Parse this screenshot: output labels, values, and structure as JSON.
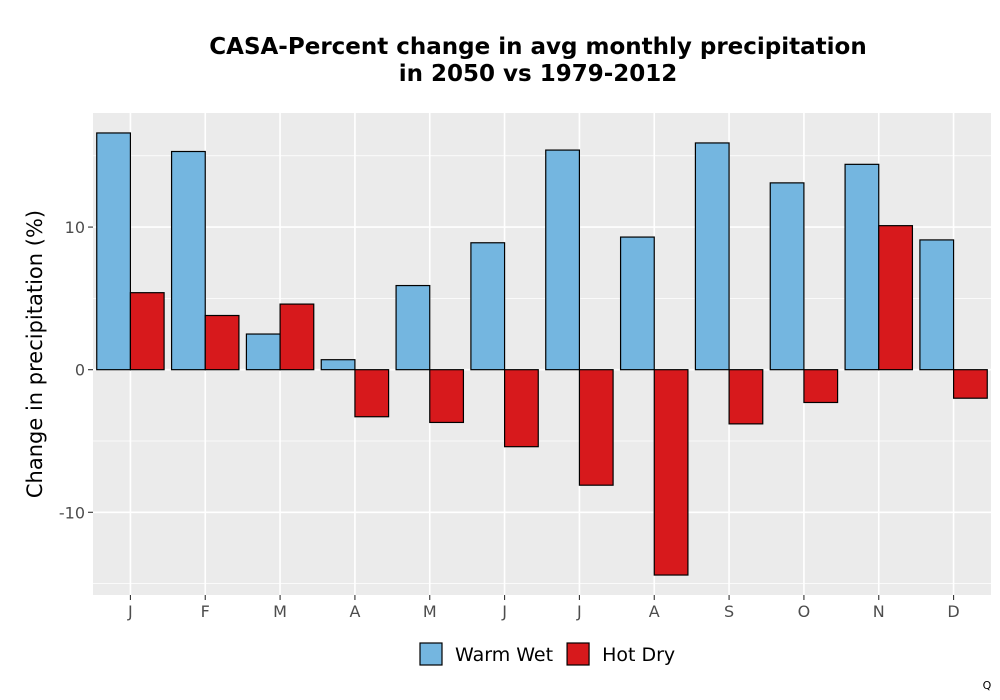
{
  "chart_data": {
    "type": "bar",
    "title": [
      "CASA-Percent change in avg monthly precipitation",
      "in 2050 vs 1979-2012"
    ],
    "xlabel": "",
    "ylabel": "Change in precipitation (%)",
    "ylim": [
      -15.8,
      18
    ],
    "yticks": [
      -10,
      0,
      10
    ],
    "ytick_labels": [
      "-10",
      "0",
      "10"
    ],
    "categories": [
      "J",
      "F",
      "M",
      "A",
      "M",
      "J",
      "J",
      "A",
      "S",
      "O",
      "N",
      "D"
    ],
    "series": [
      {
        "name": "Warm Wet",
        "color": "#74b6e0",
        "values": [
          16.6,
          15.3,
          2.5,
          0.7,
          5.9,
          8.9,
          15.4,
          9.3,
          15.9,
          13.1,
          14.4,
          9.1
        ]
      },
      {
        "name": "Hot Dry",
        "color": "#d7191c",
        "values": [
          5.4,
          3.8,
          4.6,
          -3.3,
          -3.7,
          -5.4,
          -8.1,
          -14.4,
          -3.8,
          -2.3,
          10.1,
          -2.0
        ]
      }
    ],
    "grid": true,
    "legend_position": "bottom",
    "panel_background": "#ebebeb"
  },
  "corner_mark": "Q"
}
